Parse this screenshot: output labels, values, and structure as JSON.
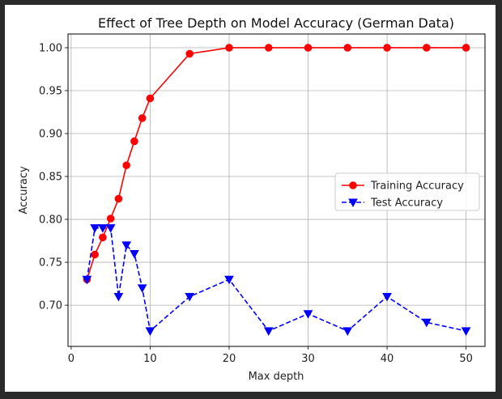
{
  "chart_data": {
    "type": "line",
    "title": "Effect of Tree Depth on Model Accuracy (German Data)",
    "xlabel": "Max depth",
    "ylabel": "Accuracy",
    "xlim": [
      -0.4,
      52.4
    ],
    "ylim": [
      0.652,
      1.016
    ],
    "xticks": [
      0,
      10,
      20,
      30,
      40,
      50
    ],
    "yticks": [
      0.7,
      0.75,
      0.8,
      0.85,
      0.9,
      0.95,
      1.0
    ],
    "xtick_labels": [
      "0",
      "10",
      "20",
      "30",
      "40",
      "50"
    ],
    "ytick_labels": [
      "0.70",
      "0.75",
      "0.80",
      "0.85",
      "0.90",
      "0.95",
      "1.00"
    ],
    "grid": true,
    "legend_position": "center-right",
    "x": [
      2,
      3,
      4,
      5,
      6,
      7,
      8,
      9,
      10,
      15,
      20,
      25,
      30,
      35,
      40,
      45,
      50
    ],
    "series": [
      {
        "name": "Training Accuracy",
        "color": "#ff0000",
        "linestyle": "solid",
        "marker": "circle",
        "values": [
          0.73,
          0.759,
          0.779,
          0.801,
          0.824,
          0.863,
          0.891,
          0.918,
          0.941,
          0.993,
          1.0,
          1.0,
          1.0,
          1.0,
          1.0,
          1.0,
          1.0
        ]
      },
      {
        "name": "Test Accuracy",
        "color": "#0000ff",
        "linestyle": "dashed",
        "marker": "triangle-down",
        "values": [
          0.73,
          0.79,
          0.79,
          0.79,
          0.71,
          0.77,
          0.76,
          0.72,
          0.67,
          0.71,
          0.73,
          0.67,
          0.69,
          0.67,
          0.71,
          0.68,
          0.67
        ]
      }
    ]
  }
}
